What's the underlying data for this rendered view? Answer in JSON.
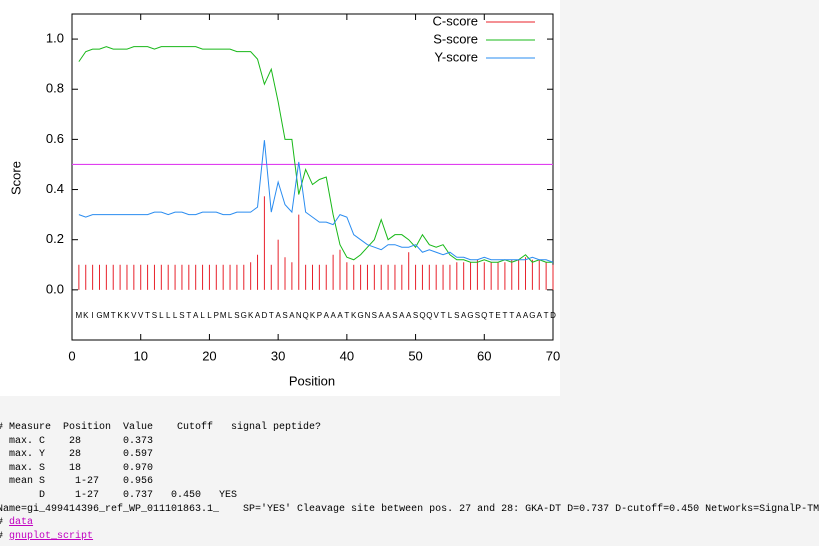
{
  "chart_data": {
    "type": "line",
    "xlabel": "Position",
    "ylabel": "Score",
    "x": [
      1,
      2,
      3,
      4,
      5,
      6,
      7,
      8,
      9,
      10,
      11,
      12,
      13,
      14,
      15,
      16,
      17,
      18,
      19,
      20,
      21,
      22,
      23,
      24,
      25,
      26,
      27,
      28,
      29,
      30,
      31,
      32,
      33,
      34,
      35,
      36,
      37,
      38,
      39,
      40,
      41,
      42,
      43,
      44,
      45,
      46,
      47,
      48,
      49,
      50,
      51,
      52,
      53,
      54,
      55,
      56,
      57,
      58,
      59,
      60,
      61,
      62,
      63,
      64,
      65,
      66,
      67,
      68,
      69,
      70
    ],
    "xlim": [
      0,
      70
    ],
    "xticks": [
      0,
      10,
      20,
      30,
      40,
      50,
      60,
      70
    ],
    "ylim": [
      -0.2,
      1.1
    ],
    "yticks": [
      {
        "value": 0,
        "label": "0.0"
      },
      0.2,
      0.4,
      0.6,
      0.8,
      {
        "value": 1,
        "label": "1.0"
      }
    ],
    "series": [
      {
        "name": "C-score",
        "color": "#e8202a",
        "style": "impulses",
        "values": [
          0.1,
          0.1,
          0.1,
          0.1,
          0.1,
          0.1,
          0.1,
          0.1,
          0.1,
          0.1,
          0.1,
          0.1,
          0.1,
          0.1,
          0.1,
          0.1,
          0.1,
          0.1,
          0.1,
          0.1,
          0.1,
          0.1,
          0.1,
          0.1,
          0.1,
          0.11,
          0.14,
          0.373,
          0.1,
          0.2,
          0.13,
          0.11,
          0.3,
          0.1,
          0.1,
          0.1,
          0.1,
          0.14,
          0.16,
          0.11,
          0.1,
          0.1,
          0.1,
          0.1,
          0.1,
          0.1,
          0.1,
          0.1,
          0.15,
          0.1,
          0.1,
          0.1,
          0.1,
          0.1,
          0.1,
          0.11,
          0.11,
          0.11,
          0.12,
          0.11,
          0.11,
          0.11,
          0.11,
          0.12,
          0.12,
          0.13,
          0.12,
          0.12,
          0.11,
          0.1
        ]
      },
      {
        "name": "S-score",
        "color": "#18b818",
        "style": "lines",
        "values": [
          0.91,
          0.95,
          0.96,
          0.96,
          0.97,
          0.96,
          0.96,
          0.96,
          0.97,
          0.97,
          0.97,
          0.96,
          0.97,
          0.97,
          0.97,
          0.97,
          0.97,
          0.97,
          0.96,
          0.96,
          0.96,
          0.96,
          0.96,
          0.95,
          0.95,
          0.95,
          0.92,
          0.82,
          0.88,
          0.75,
          0.6,
          0.6,
          0.38,
          0.48,
          0.42,
          0.44,
          0.45,
          0.3,
          0.18,
          0.13,
          0.12,
          0.14,
          0.17,
          0.2,
          0.28,
          0.2,
          0.22,
          0.22,
          0.2,
          0.17,
          0.22,
          0.18,
          0.17,
          0.18,
          0.14,
          0.12,
          0.12,
          0.11,
          0.11,
          0.12,
          0.11,
          0.11,
          0.12,
          0.11,
          0.12,
          0.14,
          0.11,
          0.12,
          0.11,
          0.11
        ]
      },
      {
        "name": "Y-score",
        "color": "#2a8cf0",
        "style": "lines",
        "values": [
          0.3,
          0.29,
          0.3,
          0.3,
          0.3,
          0.3,
          0.3,
          0.3,
          0.3,
          0.3,
          0.3,
          0.31,
          0.31,
          0.3,
          0.31,
          0.31,
          0.3,
          0.3,
          0.31,
          0.31,
          0.31,
          0.3,
          0.3,
          0.31,
          0.31,
          0.31,
          0.33,
          0.597,
          0.31,
          0.43,
          0.34,
          0.31,
          0.51,
          0.31,
          0.29,
          0.27,
          0.27,
          0.26,
          0.3,
          0.29,
          0.22,
          0.2,
          0.18,
          0.17,
          0.16,
          0.18,
          0.18,
          0.17,
          0.17,
          0.18,
          0.15,
          0.16,
          0.15,
          0.14,
          0.15,
          0.13,
          0.13,
          0.12,
          0.12,
          0.13,
          0.12,
          0.12,
          0.12,
          0.12,
          0.12,
          0.12,
          0.13,
          0.12,
          0.12,
          0.11
        ]
      }
    ],
    "cutoff_line": {
      "value": 0.5,
      "color": "#e040f0"
    },
    "sequence": [
      "M",
      "K",
      "I",
      "G",
      "M",
      "T",
      "K",
      "K",
      "V",
      "V",
      "T",
      "S",
      "L",
      "L",
      "L",
      "S",
      "T",
      "A",
      "L",
      "L",
      "P",
      "M",
      "L",
      "S",
      "G",
      "K",
      "A",
      "D",
      "T",
      "A",
      "S",
      "A",
      "N",
      "Q",
      "K",
      "P",
      "A",
      "A",
      "A",
      "T",
      "K",
      "G",
      "N",
      "S",
      "A",
      "A",
      "S",
      "A",
      "A",
      "S",
      "Q",
      "Q",
      "V",
      "T",
      "L",
      "S",
      "A",
      "G",
      "S",
      "Q",
      "T",
      "E",
      "T",
      "T",
      "A",
      "A",
      "G",
      "A",
      "T",
      "D"
    ]
  },
  "results": {
    "lines": [
      "# Measure  Position  Value    Cutoff   signal peptide?",
      "  max. C    28       0.373",
      "  max. Y    28       0.597",
      "  max. S    18       0.970",
      "  mean S     1-27    0.956",
      "       D     1-27    0.737   0.450   YES",
      "Name=gi_499414396_ref_WP_011101863.1_    SP='YES' Cleavage site between pos. 27 and 28: GKA-DT D=0.737 D-cutoff=0.450 Networks=SignalP-TM"
    ]
  },
  "links": [
    {
      "marker": "#",
      "text": "data"
    },
    {
      "marker": "#",
      "text": "gnuplot_script"
    }
  ]
}
